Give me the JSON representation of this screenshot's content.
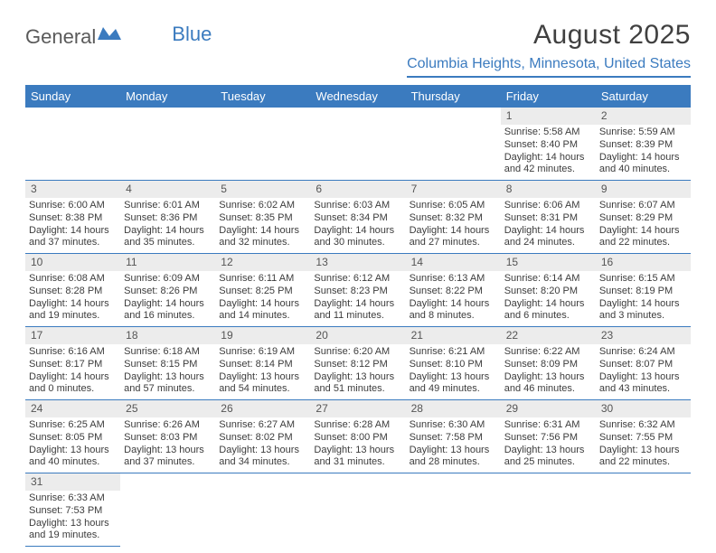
{
  "logo": {
    "part1": "General",
    "part2": "Blue"
  },
  "title": "August 2025",
  "location": "Columbia Heights, Minnesota, United States",
  "dayNames": [
    "Sunday",
    "Monday",
    "Tuesday",
    "Wednesday",
    "Thursday",
    "Friday",
    "Saturday"
  ],
  "colors": {
    "accent": "#3b7bbf",
    "stripe": "#ececec",
    "text": "#3c3c3c",
    "bg": "#ffffff"
  },
  "typography": {
    "title_fontsize": 30,
    "location_fontsize": 16,
    "dayhead_fontsize": 13,
    "daynum_fontsize": 12,
    "cell_fontsize": 11
  },
  "weeks": [
    [
      null,
      null,
      null,
      null,
      null,
      {
        "n": "1",
        "sunrise": "Sunrise: 5:58 AM",
        "sunset": "Sunset: 8:40 PM",
        "day1": "Daylight: 14 hours",
        "day2": "and 42 minutes."
      },
      {
        "n": "2",
        "sunrise": "Sunrise: 5:59 AM",
        "sunset": "Sunset: 8:39 PM",
        "day1": "Daylight: 14 hours",
        "day2": "and 40 minutes."
      }
    ],
    [
      {
        "n": "3",
        "sunrise": "Sunrise: 6:00 AM",
        "sunset": "Sunset: 8:38 PM",
        "day1": "Daylight: 14 hours",
        "day2": "and 37 minutes."
      },
      {
        "n": "4",
        "sunrise": "Sunrise: 6:01 AM",
        "sunset": "Sunset: 8:36 PM",
        "day1": "Daylight: 14 hours",
        "day2": "and 35 minutes."
      },
      {
        "n": "5",
        "sunrise": "Sunrise: 6:02 AM",
        "sunset": "Sunset: 8:35 PM",
        "day1": "Daylight: 14 hours",
        "day2": "and 32 minutes."
      },
      {
        "n": "6",
        "sunrise": "Sunrise: 6:03 AM",
        "sunset": "Sunset: 8:34 PM",
        "day1": "Daylight: 14 hours",
        "day2": "and 30 minutes."
      },
      {
        "n": "7",
        "sunrise": "Sunrise: 6:05 AM",
        "sunset": "Sunset: 8:32 PM",
        "day1": "Daylight: 14 hours",
        "day2": "and 27 minutes."
      },
      {
        "n": "8",
        "sunrise": "Sunrise: 6:06 AM",
        "sunset": "Sunset: 8:31 PM",
        "day1": "Daylight: 14 hours",
        "day2": "and 24 minutes."
      },
      {
        "n": "9",
        "sunrise": "Sunrise: 6:07 AM",
        "sunset": "Sunset: 8:29 PM",
        "day1": "Daylight: 14 hours",
        "day2": "and 22 minutes."
      }
    ],
    [
      {
        "n": "10",
        "sunrise": "Sunrise: 6:08 AM",
        "sunset": "Sunset: 8:28 PM",
        "day1": "Daylight: 14 hours",
        "day2": "and 19 minutes."
      },
      {
        "n": "11",
        "sunrise": "Sunrise: 6:09 AM",
        "sunset": "Sunset: 8:26 PM",
        "day1": "Daylight: 14 hours",
        "day2": "and 16 minutes."
      },
      {
        "n": "12",
        "sunrise": "Sunrise: 6:11 AM",
        "sunset": "Sunset: 8:25 PM",
        "day1": "Daylight: 14 hours",
        "day2": "and 14 minutes."
      },
      {
        "n": "13",
        "sunrise": "Sunrise: 6:12 AM",
        "sunset": "Sunset: 8:23 PM",
        "day1": "Daylight: 14 hours",
        "day2": "and 11 minutes."
      },
      {
        "n": "14",
        "sunrise": "Sunrise: 6:13 AM",
        "sunset": "Sunset: 8:22 PM",
        "day1": "Daylight: 14 hours",
        "day2": "and 8 minutes."
      },
      {
        "n": "15",
        "sunrise": "Sunrise: 6:14 AM",
        "sunset": "Sunset: 8:20 PM",
        "day1": "Daylight: 14 hours",
        "day2": "and 6 minutes."
      },
      {
        "n": "16",
        "sunrise": "Sunrise: 6:15 AM",
        "sunset": "Sunset: 8:19 PM",
        "day1": "Daylight: 14 hours",
        "day2": "and 3 minutes."
      }
    ],
    [
      {
        "n": "17",
        "sunrise": "Sunrise: 6:16 AM",
        "sunset": "Sunset: 8:17 PM",
        "day1": "Daylight: 14 hours",
        "day2": "and 0 minutes."
      },
      {
        "n": "18",
        "sunrise": "Sunrise: 6:18 AM",
        "sunset": "Sunset: 8:15 PM",
        "day1": "Daylight: 13 hours",
        "day2": "and 57 minutes."
      },
      {
        "n": "19",
        "sunrise": "Sunrise: 6:19 AM",
        "sunset": "Sunset: 8:14 PM",
        "day1": "Daylight: 13 hours",
        "day2": "and 54 minutes."
      },
      {
        "n": "20",
        "sunrise": "Sunrise: 6:20 AM",
        "sunset": "Sunset: 8:12 PM",
        "day1": "Daylight: 13 hours",
        "day2": "and 51 minutes."
      },
      {
        "n": "21",
        "sunrise": "Sunrise: 6:21 AM",
        "sunset": "Sunset: 8:10 PM",
        "day1": "Daylight: 13 hours",
        "day2": "and 49 minutes."
      },
      {
        "n": "22",
        "sunrise": "Sunrise: 6:22 AM",
        "sunset": "Sunset: 8:09 PM",
        "day1": "Daylight: 13 hours",
        "day2": "and 46 minutes."
      },
      {
        "n": "23",
        "sunrise": "Sunrise: 6:24 AM",
        "sunset": "Sunset: 8:07 PM",
        "day1": "Daylight: 13 hours",
        "day2": "and 43 minutes."
      }
    ],
    [
      {
        "n": "24",
        "sunrise": "Sunrise: 6:25 AM",
        "sunset": "Sunset: 8:05 PM",
        "day1": "Daylight: 13 hours",
        "day2": "and 40 minutes."
      },
      {
        "n": "25",
        "sunrise": "Sunrise: 6:26 AM",
        "sunset": "Sunset: 8:03 PM",
        "day1": "Daylight: 13 hours",
        "day2": "and 37 minutes."
      },
      {
        "n": "26",
        "sunrise": "Sunrise: 6:27 AM",
        "sunset": "Sunset: 8:02 PM",
        "day1": "Daylight: 13 hours",
        "day2": "and 34 minutes."
      },
      {
        "n": "27",
        "sunrise": "Sunrise: 6:28 AM",
        "sunset": "Sunset: 8:00 PM",
        "day1": "Daylight: 13 hours",
        "day2": "and 31 minutes."
      },
      {
        "n": "28",
        "sunrise": "Sunrise: 6:30 AM",
        "sunset": "Sunset: 7:58 PM",
        "day1": "Daylight: 13 hours",
        "day2": "and 28 minutes."
      },
      {
        "n": "29",
        "sunrise": "Sunrise: 6:31 AM",
        "sunset": "Sunset: 7:56 PM",
        "day1": "Daylight: 13 hours",
        "day2": "and 25 minutes."
      },
      {
        "n": "30",
        "sunrise": "Sunrise: 6:32 AM",
        "sunset": "Sunset: 7:55 PM",
        "day1": "Daylight: 13 hours",
        "day2": "and 22 minutes."
      }
    ],
    [
      {
        "n": "31",
        "sunrise": "Sunrise: 6:33 AM",
        "sunset": "Sunset: 7:53 PM",
        "day1": "Daylight: 13 hours",
        "day2": "and 19 minutes."
      },
      null,
      null,
      null,
      null,
      null,
      null
    ]
  ]
}
